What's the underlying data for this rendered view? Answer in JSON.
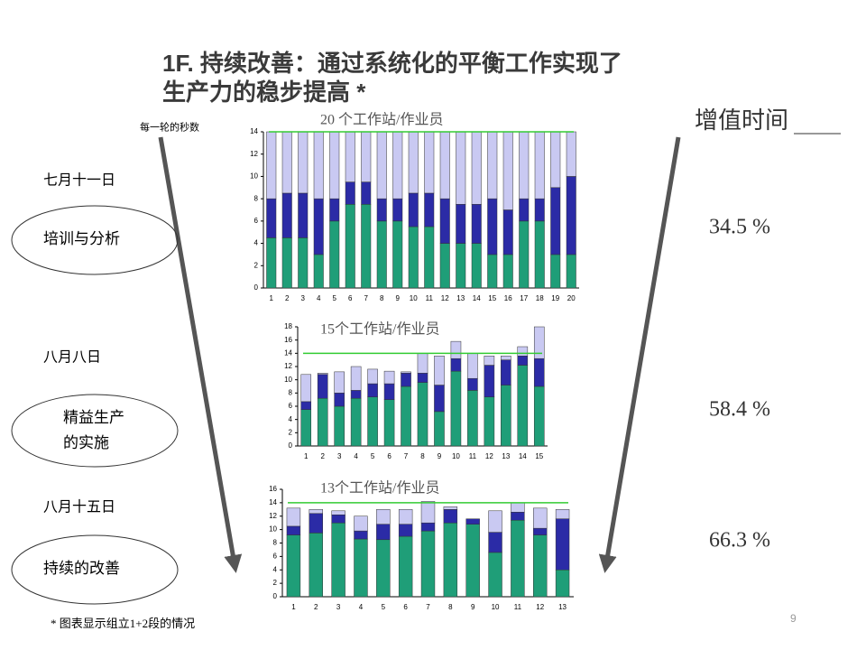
{
  "header": {
    "title_line1": "1F. 持续改善：通过系统化的平衡工作实现了",
    "title_line2": "生产力的稳步提高 *"
  },
  "y_axis_note": "每一轮的秒数",
  "stages": [
    {
      "date": "七月十一日",
      "label_lines": [
        "培训与分析"
      ]
    },
    {
      "date": "八月八日",
      "label_lines": [
        "精益生产",
        "的实施"
      ]
    },
    {
      "date": "八月十五日",
      "label_lines": [
        "持续的改善"
      ]
    }
  ],
  "value_added": {
    "title": "增值时间",
    "values": [
      "34.5 %",
      "58.4 %",
      "66.3 %"
    ]
  },
  "footnote": "* 图表显示组立1+2段的情况",
  "page_number": "9",
  "chart_data": [
    {
      "type": "bar",
      "stacked": true,
      "title": "20 个工作站/作业员",
      "categories": [
        "1",
        "2",
        "3",
        "4",
        "5",
        "6",
        "7",
        "8",
        "9",
        "10",
        "11",
        "12",
        "13",
        "14",
        "15",
        "16",
        "17",
        "18",
        "19",
        "20"
      ],
      "series": [
        {
          "color": "#1f9e78",
          "values": [
            4.5,
            4.5,
            4.5,
            3,
            6,
            7.5,
            7.5,
            6,
            6,
            5.5,
            5.5,
            4,
            4,
            4,
            3,
            3,
            6,
            6,
            3,
            3
          ]
        },
        {
          "color": "#2b2ba6",
          "values": [
            3.5,
            4,
            4,
            5,
            2,
            2,
            2,
            2,
            2,
            3,
            3,
            4,
            3.5,
            3.5,
            5,
            4,
            2,
            2,
            6,
            7
          ]
        },
        {
          "color": "#c9c9f2",
          "values": [
            6,
            5.5,
            5.5,
            6,
            6,
            4.5,
            4.5,
            6,
            6,
            5.5,
            5.5,
            6,
            6.5,
            6.5,
            6,
            7,
            6,
            6,
            5,
            4
          ]
        }
      ],
      "ylim": [
        0,
        14
      ],
      "yticks": [
        0,
        2,
        4,
        6,
        8,
        10,
        12,
        14
      ],
      "target_line": 14,
      "target_color": "#33cc33"
    },
    {
      "type": "bar",
      "stacked": true,
      "title": "15个工作站/作业员",
      "categories": [
        "1",
        "2",
        "3",
        "4",
        "5",
        "6",
        "7",
        "8",
        "9",
        "10",
        "11",
        "12",
        "13",
        "14",
        "15"
      ],
      "series": [
        {
          "color": "#1f9e78",
          "values": [
            5.5,
            7.2,
            6,
            7.2,
            7.4,
            7,
            9,
            9.6,
            5.2,
            11.3,
            8.4,
            7.4,
            9.2,
            12.2,
            9
          ]
        },
        {
          "color": "#2b2ba6",
          "values": [
            1.2,
            3.6,
            2,
            1.2,
            2,
            2.4,
            2,
            1.4,
            4,
            1.9,
            1.8,
            4.8,
            3.8,
            1.4,
            4.2
          ]
        },
        {
          "color": "#c9c9f2",
          "values": [
            4.1,
            0.2,
            3.2,
            3.6,
            2.2,
            1.9,
            0.2,
            3,
            4.4,
            2.6,
            3.8,
            1.4,
            0.6,
            1.4,
            4.8
          ]
        }
      ],
      "ylim": [
        0,
        18
      ],
      "yticks": [
        0,
        2,
        4,
        6,
        8,
        10,
        12,
        14,
        16,
        18
      ],
      "target_line": 14,
      "target_color": "#33cc33"
    },
    {
      "type": "bar",
      "stacked": true,
      "title": "13个工作站/作业员",
      "categories": [
        "1",
        "2",
        "3",
        "4",
        "5",
        "6",
        "7",
        "8",
        "9",
        "10",
        "11",
        "12",
        "13"
      ],
      "series": [
        {
          "color": "#1f9e78",
          "values": [
            9.2,
            9.5,
            11,
            8.6,
            8.5,
            9,
            9.8,
            11,
            10.8,
            6.6,
            11.4,
            9.2,
            4
          ]
        },
        {
          "color": "#2b2ba6",
          "values": [
            1.3,
            2.9,
            1.2,
            1.2,
            2.3,
            1.8,
            1.2,
            2,
            0.8,
            3,
            1.2,
            1,
            7.6
          ]
        },
        {
          "color": "#c9c9f2",
          "values": [
            2.7,
            0.6,
            0.6,
            2.2,
            2.2,
            2.2,
            3.2,
            0.4,
            0,
            3.2,
            1.4,
            3,
            1.4
          ]
        }
      ],
      "ylim": [
        0,
        16
      ],
      "yticks": [
        0,
        2,
        4,
        6,
        8,
        10,
        12,
        14,
        16
      ],
      "target_line": 14,
      "target_color": "#33cc33"
    }
  ]
}
